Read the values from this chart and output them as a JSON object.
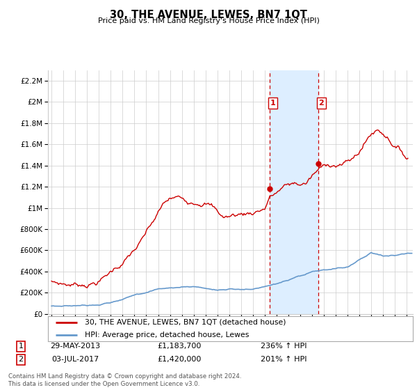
{
  "title": "30, THE AVENUE, LEWES, BN7 1QT",
  "subtitle": "Price paid vs. HM Land Registry's House Price Index (HPI)",
  "footer": "Contains HM Land Registry data © Crown copyright and database right 2024.\nThis data is licensed under the Open Government Licence v3.0.",
  "legend_line1": "30, THE AVENUE, LEWES, BN7 1QT (detached house)",
  "legend_line2": "HPI: Average price, detached house, Lewes",
  "transaction1_label": "1",
  "transaction1_date": "29-MAY-2013",
  "transaction1_price": "£1,183,700",
  "transaction1_hpi": "236% ↑ HPI",
  "transaction2_label": "2",
  "transaction2_date": "03-JUL-2017",
  "transaction2_price": "£1,420,000",
  "transaction2_hpi": "201% ↑ HPI",
  "red_color": "#cc0000",
  "blue_color": "#6699cc",
  "shaded_color": "#ddeeff",
  "grid_color": "#cccccc",
  "background_color": "#ffffff",
  "ylim_min": 0,
  "ylim_max": 2300000,
  "yticks": [
    0,
    200000,
    400000,
    600000,
    800000,
    1000000,
    1200000,
    1400000,
    1600000,
    1800000,
    2000000,
    2200000
  ],
  "ytick_labels": [
    "£0",
    "£200K",
    "£400K",
    "£600K",
    "£800K",
    "£1M",
    "£1.2M",
    "£1.4M",
    "£1.6M",
    "£1.8M",
    "£2M",
    "£2.2M"
  ],
  "vline1_x": 2013.42,
  "vline2_x": 2017.5,
  "shade_start": 2013.42,
  "shade_end": 2017.5,
  "marker1_x": 2013.42,
  "marker1_y": 1183700,
  "marker2_x": 2017.5,
  "marker2_y": 1420000,
  "xlim_min": 1994.7,
  "xlim_max": 2025.5
}
